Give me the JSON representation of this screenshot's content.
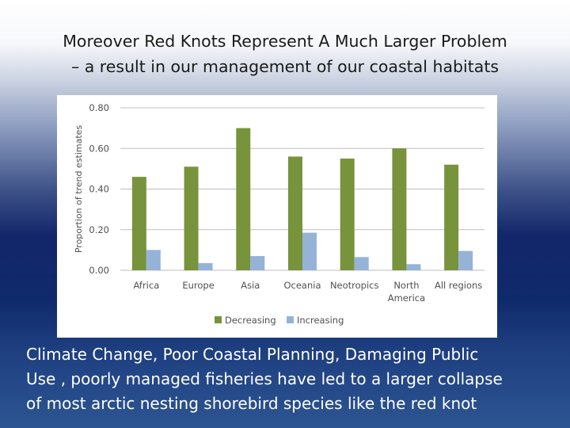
{
  "slide": {
    "title_lines": [
      "Moreover Red Knots Represent A Much Larger Problem",
      "– a result in our management of our coastal habitats"
    ],
    "caption_lines": [
      "Climate Change, Poor Coastal Planning, Damaging Public",
      "Use , poorly managed fisheries have led to a larger collapse",
      "of most arctic nesting shorebird species like the red knot"
    ]
  },
  "chart_data": {
    "type": "bar",
    "title": "",
    "xlabel": "",
    "ylabel": "Proportion of trend estimates",
    "ylim": [
      0,
      0.8
    ],
    "yticks": [
      0.0,
      0.2,
      0.4,
      0.6,
      0.8
    ],
    "ytick_labels": [
      "0.00",
      "0.20",
      "0.40",
      "0.60",
      "0.80"
    ],
    "categories": [
      [
        "Africa"
      ],
      [
        "Europe"
      ],
      [
        "Asia"
      ],
      [
        "Oceania"
      ],
      [
        "Neotropics"
      ],
      [
        "North",
        "America"
      ],
      [
        "All regions"
      ]
    ],
    "series": [
      {
        "name": "Decreasing",
        "color": "#77933c",
        "values": [
          0.46,
          0.51,
          0.7,
          0.56,
          0.55,
          0.6,
          0.52
        ]
      },
      {
        "name": "Increasing",
        "color": "#95b3d7",
        "values": [
          0.1,
          0.035,
          0.07,
          0.185,
          0.065,
          0.03,
          0.095
        ]
      }
    ],
    "grid": true,
    "legend": "bottom"
  }
}
